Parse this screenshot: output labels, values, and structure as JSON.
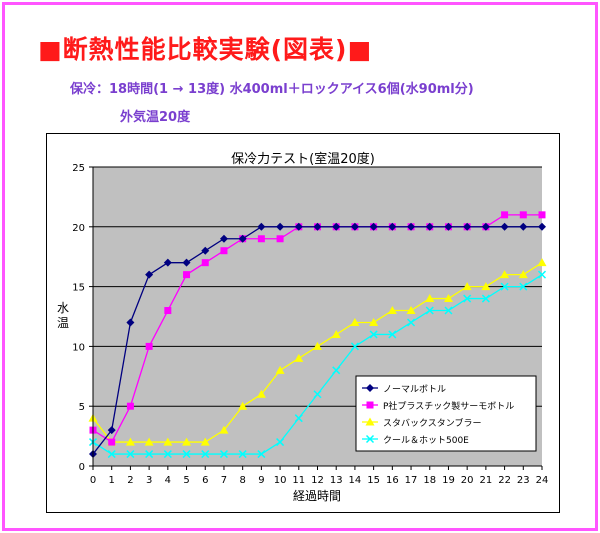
{
  "header": {
    "title": "■断熱性能比較実験(図表)■",
    "conditions": "保冷：18時間(1 → 13度) 水400ml＋ロックアイス6個(水90ml分)",
    "outside_temp": "外気温20度"
  },
  "colors": {
    "title": "#ff1a1a",
    "subtitle": "#7a3fcf",
    "frame": "#ff55ff",
    "plot_bg": "#c0c0c0"
  },
  "chart_data": {
    "type": "line",
    "title": "保冷力テスト(室温20度)",
    "xlabel": "経過時間",
    "ylabel": "水温",
    "x": [
      0,
      1,
      2,
      3,
      4,
      5,
      6,
      7,
      8,
      9,
      10,
      11,
      12,
      13,
      14,
      15,
      16,
      17,
      18,
      19,
      20,
      21,
      22,
      23,
      24
    ],
    "xlim": [
      0,
      24
    ],
    "ylim": [
      0,
      25
    ],
    "yticks": [
      0,
      5,
      10,
      15,
      20,
      25
    ],
    "grid": true,
    "legend": "inside-bottom-right",
    "series": [
      {
        "name": "ノーマルボトル",
        "color": "#000080",
        "marker": "diamond",
        "values": [
          1,
          3,
          12,
          16,
          17,
          17,
          18,
          19,
          19,
          20,
          20,
          20,
          20,
          20,
          20,
          20,
          20,
          20,
          20,
          20,
          20,
          20,
          20,
          20,
          20
        ]
      },
      {
        "name": "P社プラスチック製サーモボトル",
        "color": "#ff00ff",
        "marker": "square",
        "values": [
          3,
          2,
          5,
          10,
          13,
          16,
          17,
          18,
          19,
          19,
          19,
          20,
          20,
          20,
          20,
          20,
          20,
          20,
          20,
          20,
          20,
          20,
          21,
          21,
          21
        ]
      },
      {
        "name": "スタバックスタンブラー",
        "color": "#ffff00",
        "marker": "triangle",
        "values": [
          4,
          2,
          2,
          2,
          2,
          2,
          2,
          3,
          5,
          6,
          8,
          9,
          10,
          11,
          12,
          12,
          13,
          13,
          14,
          14,
          15,
          15,
          16,
          16,
          17
        ]
      },
      {
        "name": "クール＆ホット500E",
        "color": "#00ffff",
        "marker": "x",
        "values": [
          2,
          1,
          1,
          1,
          1,
          1,
          1,
          1,
          1,
          1,
          2,
          4,
          6,
          8,
          10,
          11,
          11,
          12,
          13,
          13,
          14,
          14,
          15,
          15,
          16
        ]
      }
    ]
  }
}
